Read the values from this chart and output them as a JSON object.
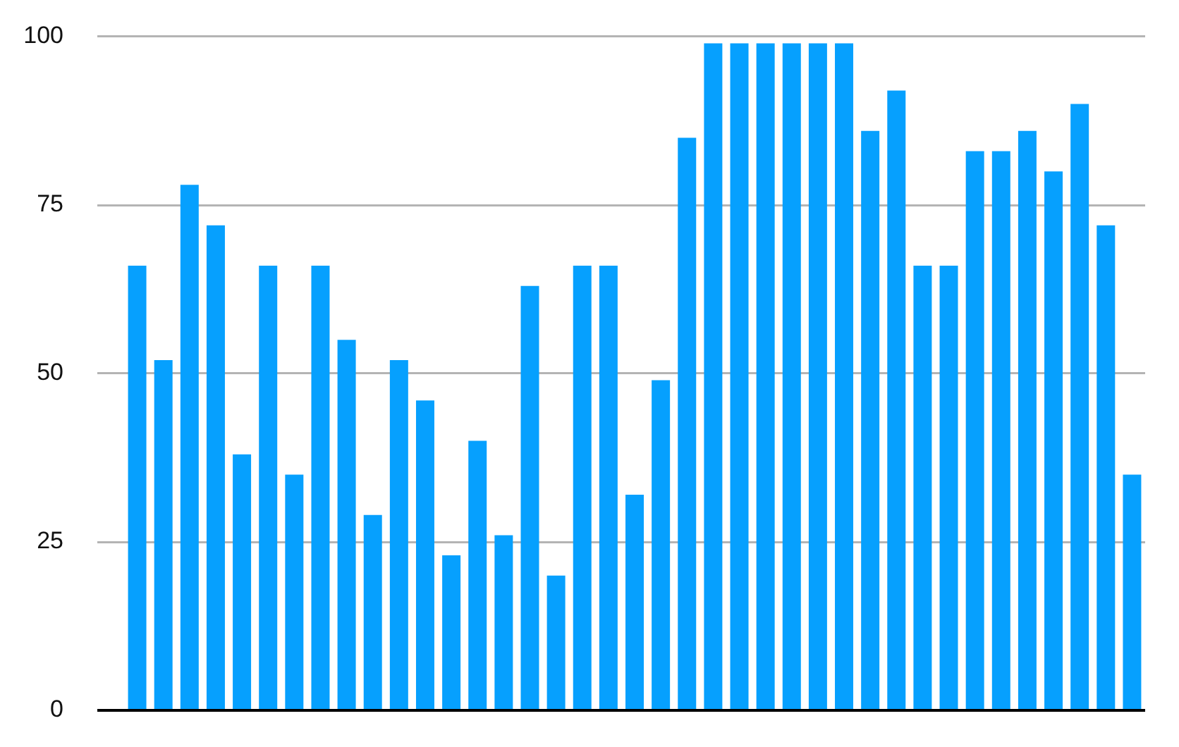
{
  "chart_data": {
    "type": "bar",
    "categories": [
      null,
      null,
      null,
      null,
      null,
      null,
      null,
      null,
      null,
      null,
      null,
      null,
      null,
      null,
      null,
      null,
      null,
      null,
      null,
      null,
      null,
      null,
      null,
      null,
      null,
      null,
      null,
      null,
      null,
      null,
      null,
      null,
      null,
      null,
      null,
      null,
      null,
      null,
      null
    ],
    "values": [
      66,
      52,
      78,
      72,
      38,
      66,
      35,
      66,
      55,
      29,
      52,
      46,
      23,
      40,
      26,
      63,
      20,
      66,
      66,
      32,
      49,
      85,
      99,
      99,
      99,
      99,
      99,
      99,
      86,
      92,
      66,
      66,
      83,
      83,
      86,
      80,
      90,
      72,
      35
    ],
    "color": "#06a0fe",
    "ylim": [
      0,
      100
    ],
    "yticks": [
      0,
      25,
      50,
      75,
      100
    ],
    "grid": "y",
    "tick_labels": "y"
  }
}
